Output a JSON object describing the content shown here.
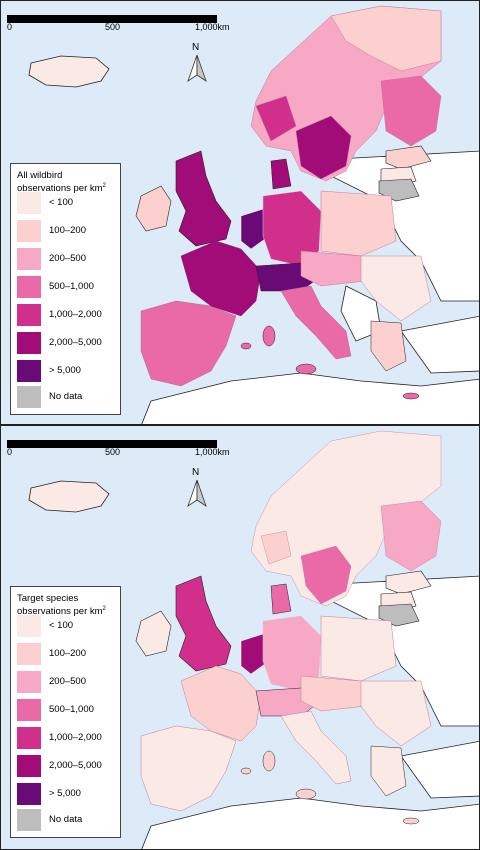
{
  "scale_bar": {
    "ticks": [
      "0",
      "500",
      "1,000km"
    ]
  },
  "north_arrow": {
    "label": "N"
  },
  "colors": {
    "sea": "#dcebf7",
    "land_outside": "#ffffff",
    "no_data": "#bdbdbd",
    "classes": [
      "#fbe9e6",
      "#fbd0cf",
      "#f6a8c4",
      "#ea6aa8",
      "#d12f8c",
      "#a10c79",
      "#6a0a77"
    ]
  },
  "panels": [
    {
      "legend": {
        "title_line1": "All wildbird",
        "title_line2": "observations per km",
        "title_sup": "2",
        "items": [
          {
            "label": "< 100"
          },
          {
            "label": "100–200"
          },
          {
            "label": "200–500"
          },
          {
            "label": "500–1,000"
          },
          {
            "label": "1,000–2,000"
          },
          {
            "label": "2,000–5,000"
          },
          {
            "label": "> 5,000"
          },
          {
            "label": "No data"
          }
        ]
      }
    },
    {
      "legend": {
        "title_line1": "Target species",
        "title_line2": "observations per km",
        "title_sup": "2",
        "items": [
          {
            "label": "< 100"
          },
          {
            "label": "100–200"
          },
          {
            "label": "200–500"
          },
          {
            "label": "500–1,000"
          },
          {
            "label": "1,000–2,000"
          },
          {
            "label": "2,000–5,000"
          },
          {
            "label": "> 5,000"
          },
          {
            "label": "No data"
          }
        ]
      }
    }
  ]
}
